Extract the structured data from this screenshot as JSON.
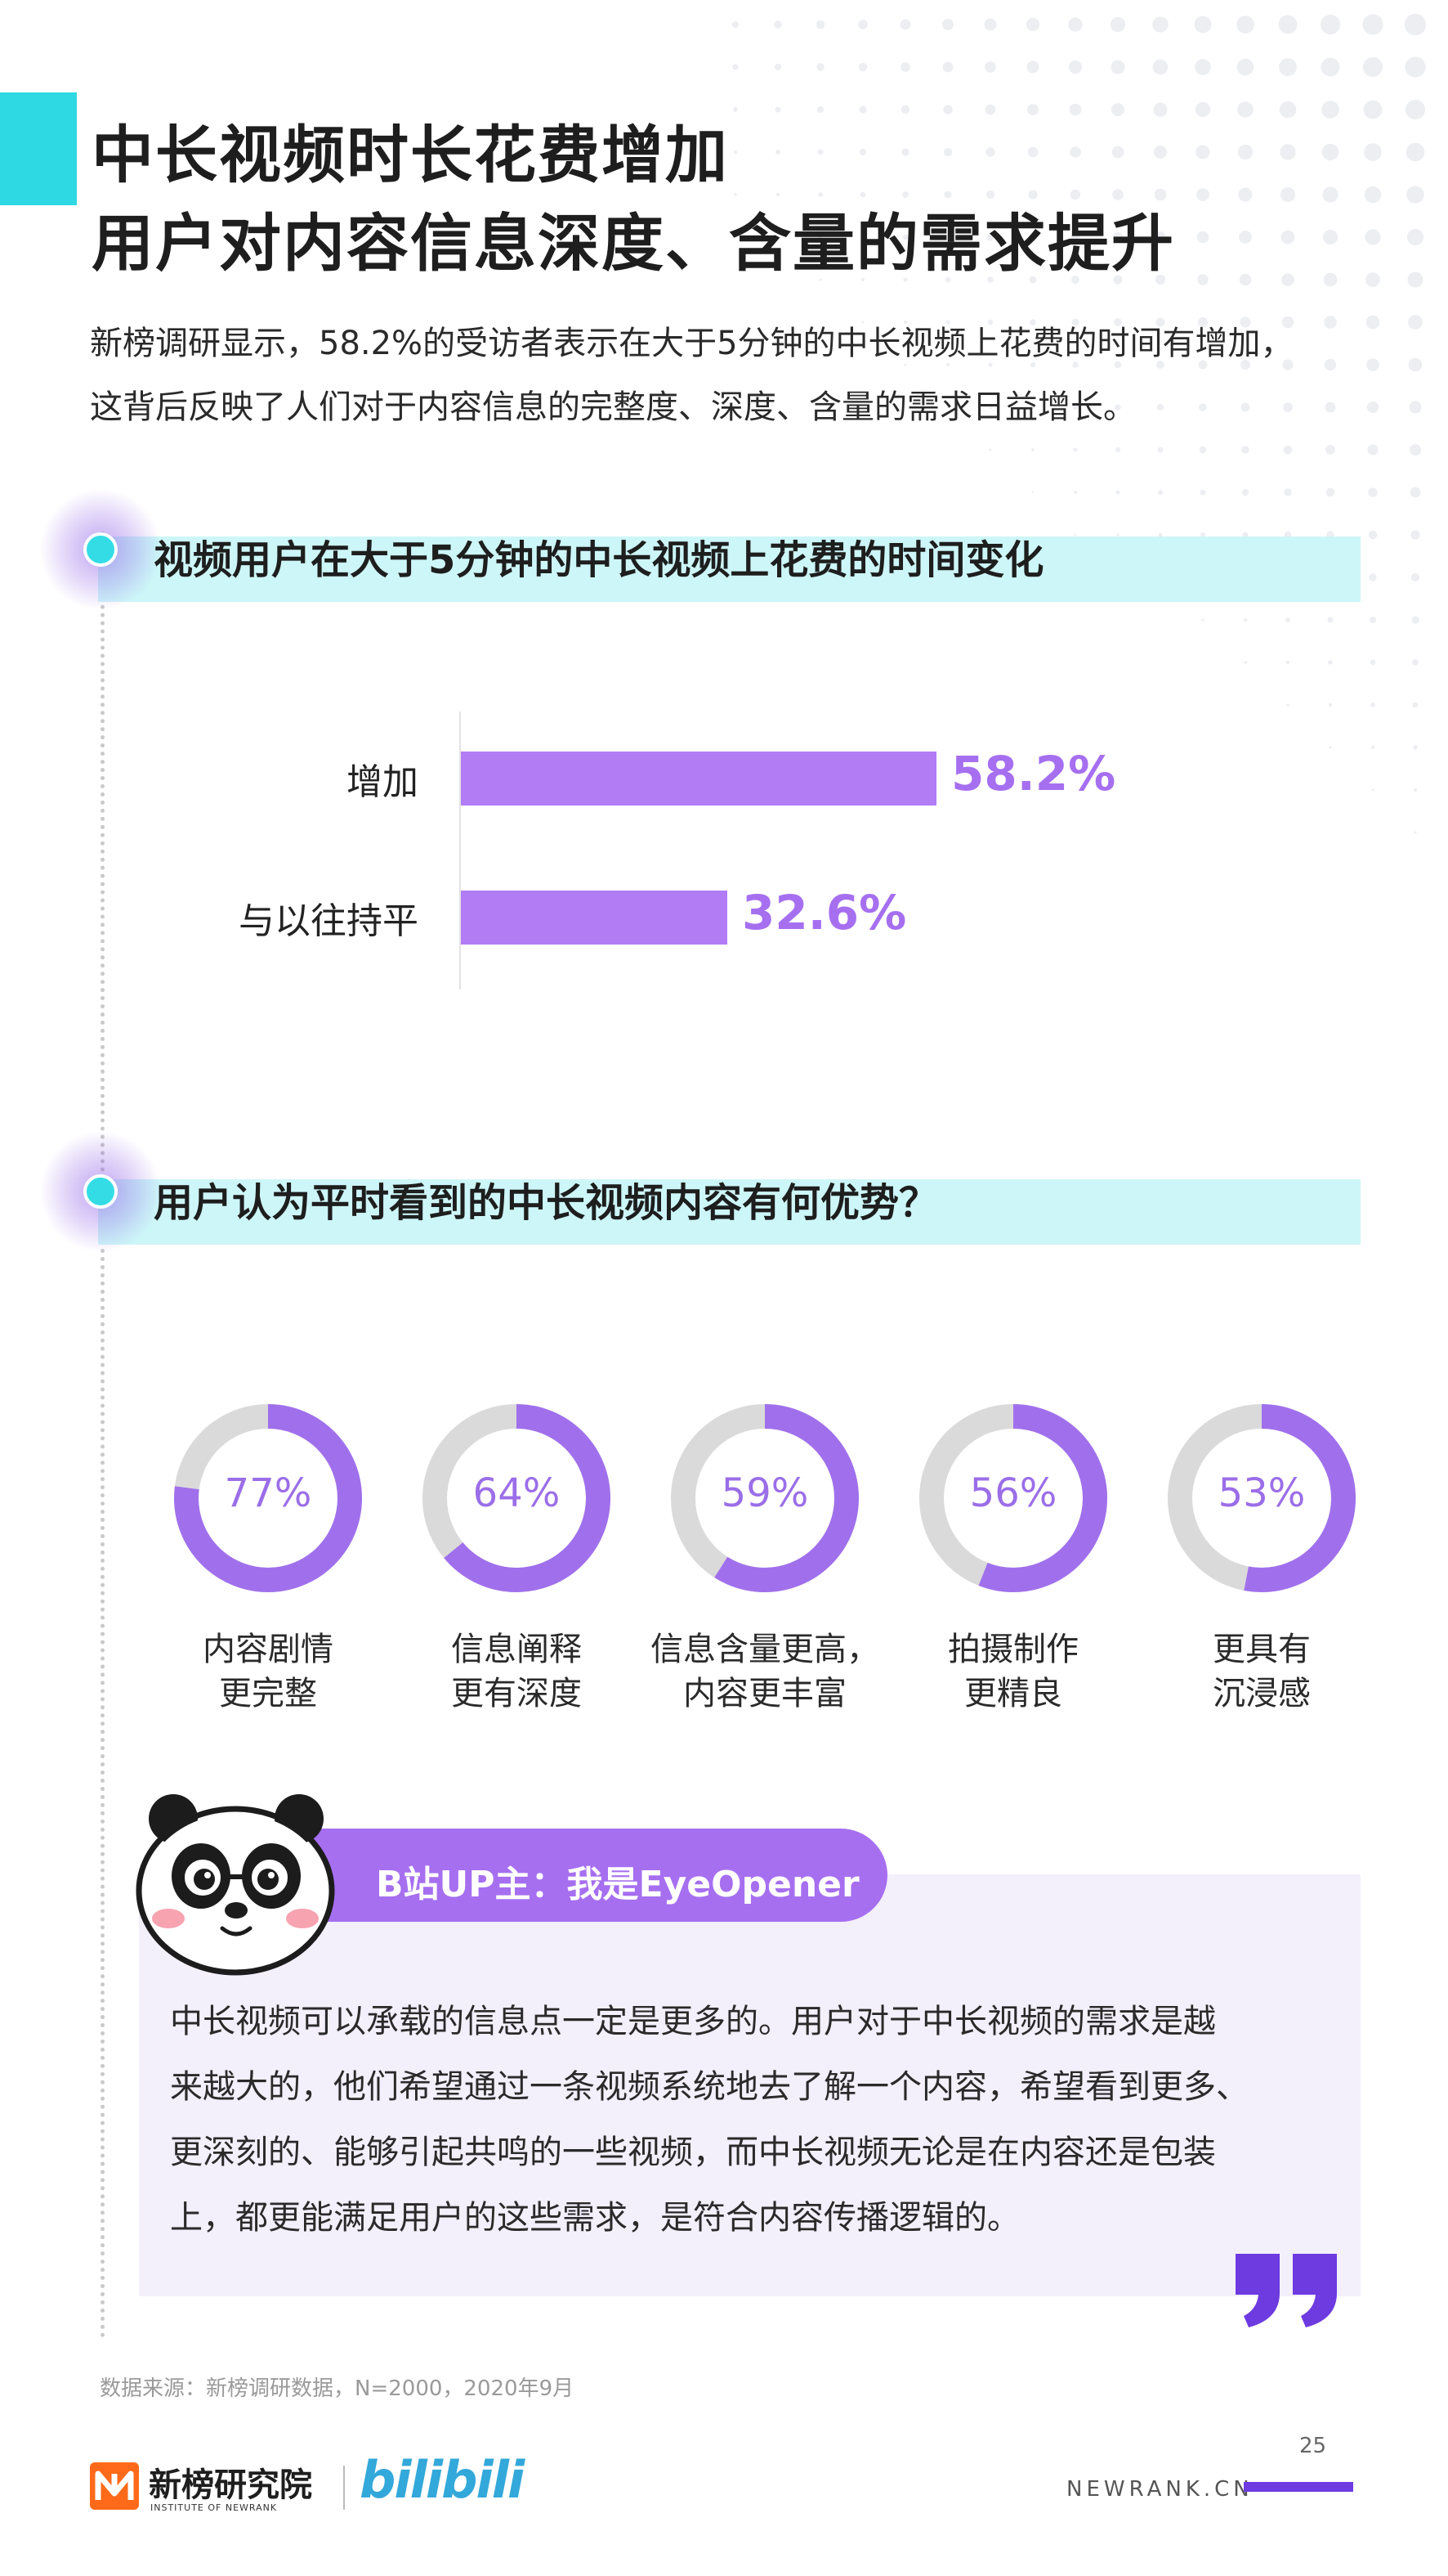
{
  "title_line1": "中长视频时长花费增加",
  "title_line2": "用户对内容信息深度、含量的需求提升",
  "intro_line1": "新榜调研显示，58.2%的受访者表示在大于5分钟的中长视频上花费的时间有增加，",
  "intro_line2": "这背后反映了人们对于内容信息的完整度、深度、含量的需求日益增长。",
  "section1_title": "视频用户在大于5分钟的中长视频上花费的时间变化",
  "section2_title": "用户认为平时看到的中长视频内容有何优势？",
  "chart_data": [
    {
      "type": "bar",
      "orientation": "horizontal",
      "categories": [
        "增加",
        "与以往持平"
      ],
      "values": [
        58.2,
        32.6
      ],
      "value_labels": [
        "58.2%",
        "32.6%"
      ],
      "unit": "%",
      "title": "视频用户在大于5分钟的中长视频上花费的时间变化",
      "xlim": [
        0,
        100
      ],
      "color": "#b27cf5"
    },
    {
      "type": "pie",
      "variant": "donut-gauges",
      "title": "用户认为平时看到的中长视频内容有何优势？",
      "categories": [
        "内容剧情更完整",
        "信息阐释更有深度",
        "信息含量更高，内容更丰富",
        "拍摄制作更精良",
        "更具有沉浸感"
      ],
      "captions": [
        [
          "内容剧情",
          "更完整"
        ],
        [
          "信息阐释",
          "更有深度"
        ],
        [
          "信息含量更高，",
          "内容更丰富"
        ],
        [
          "拍摄制作",
          "更精良"
        ],
        [
          "更具有",
          "沉浸感"
        ]
      ],
      "values": [
        77,
        64,
        59,
        56,
        53
      ],
      "value_labels": [
        "77%",
        "64%",
        "59%",
        "56%",
        "53%"
      ],
      "unit": "%",
      "color": "#a070ec",
      "track_color": "#dadada"
    }
  ],
  "quote": {
    "speaker": "B站UP主：我是EyeOpener",
    "lines": [
      "中长视频可以承载的信息点一定是更多的。用户对于中长视频的需求是越",
      "来越大的，他们希望通过一条视频系统地去了解一个内容，希望看到更多、",
      "更深刻的、能够引起共鸣的一些视频，而中长视频无论是在内容还是包装",
      "上，都更能满足用户的这些需求，是符合内容传播逻辑的。"
    ]
  },
  "source": "数据来源：新榜调研数据，N=2000，2020年9月",
  "page_number": "25",
  "site": "NEWRANK.CN",
  "logo_name": "新榜研究院",
  "logo_sub": "INSTITUTE OF NEWRANK",
  "bilibili_logo": "bilibili",
  "icons": [
    "panda-avatar-icon",
    "quote-mark-icon",
    "newrank-logo-icon"
  ],
  "colors": {
    "accent_cyan": "#2fd9e3",
    "accent_purple": "#a66ff0",
    "band": "#cdf6f8"
  }
}
